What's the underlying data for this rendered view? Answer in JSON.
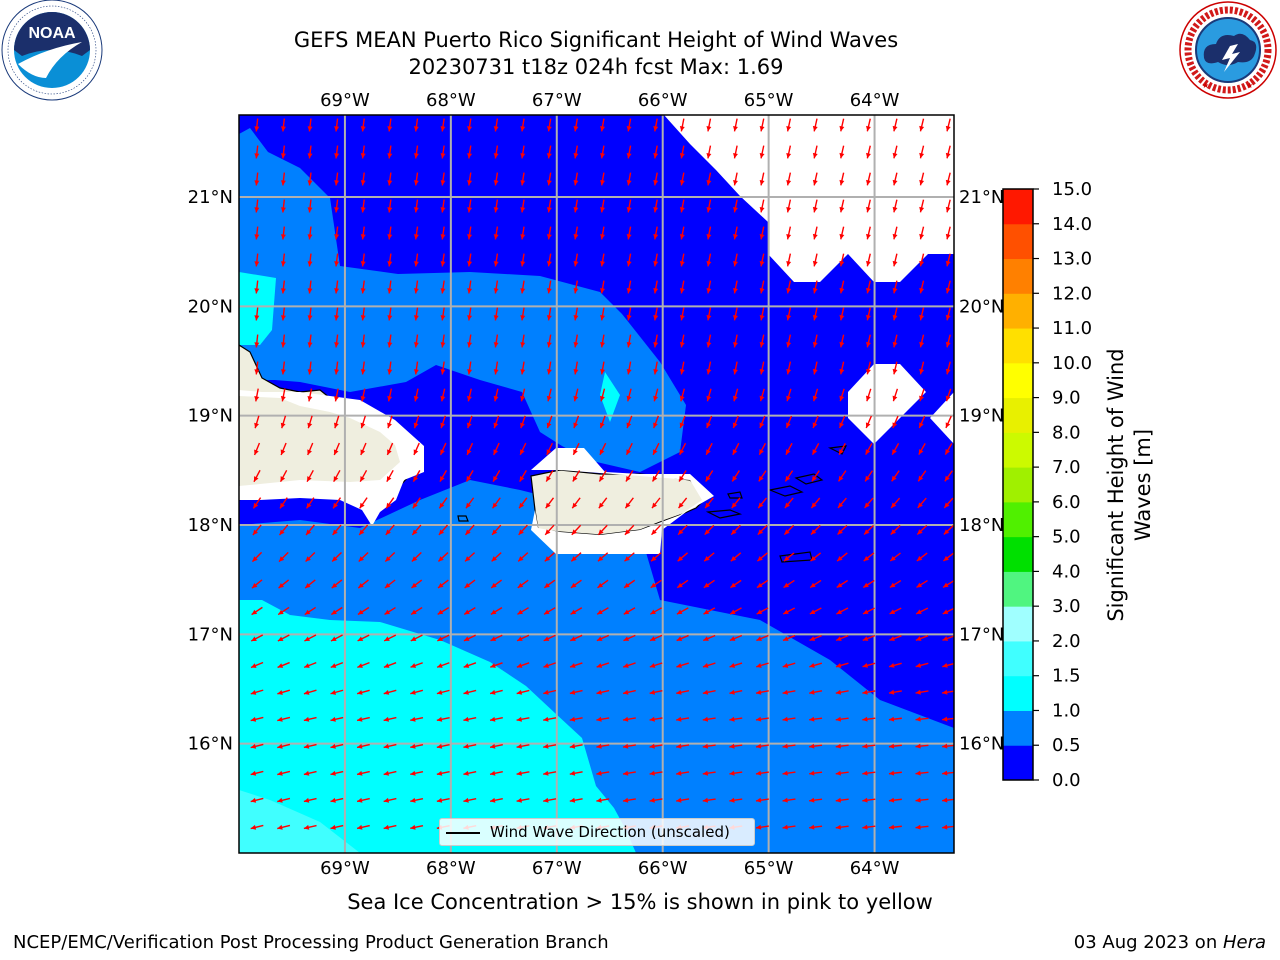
{
  "header": {
    "title_line1": "GEFS MEAN Puerto Rico Significant Height of Wind Waves",
    "title_line2": "20230731 t18z 024h fcst   Max: 1.69"
  },
  "logos": {
    "left": {
      "name": "noaa-logo",
      "text": "NOAA",
      "ring_text": "NATIONAL OCEANIC AND ATMOSPHERIC ADMINISTRATION · U.S. DEPARTMENT OF COMMERCE"
    },
    "right": {
      "name": "nws-logo",
      "ring_text": "NATIONAL WEATHER SERVICE"
    }
  },
  "map": {
    "region": "Puerto Rico",
    "lon_labels": [
      "69°W",
      "68°W",
      "67°W",
      "66°W",
      "65°W",
      "64°W"
    ],
    "lat_labels": [
      "21°N",
      "20°N",
      "19°N",
      "18°N",
      "17°N",
      "16°N"
    ],
    "lon_range": [
      -70.0,
      -63.25
    ],
    "lat_range": [
      15.0,
      21.75
    ],
    "legend_label": "Wind Wave Direction (unscaled)",
    "arrow_color": "#ff0000",
    "land_color": "#efeedf",
    "grid": true
  },
  "colorbar": {
    "label": "Significant Height of Wind Waves [m]",
    "levels": [
      "0.0",
      "0.5",
      "1.0",
      "1.5",
      "2.0",
      "3.0",
      "4.0",
      "5.0",
      "6.0",
      "7.0",
      "8.0",
      "9.0",
      "10.0",
      "11.0",
      "12.0",
      "13.0",
      "14.0",
      "15.0"
    ],
    "colors": [
      "#0000ff",
      "#0080ff",
      "#00ffff",
      "#40ffff",
      "#a0ffff",
      "#50f580",
      "#00e000",
      "#50f000",
      "#a0f000",
      "#ccfa00",
      "#e8f000",
      "#ffff00",
      "#ffe000",
      "#ffb000",
      "#ff8000",
      "#ff5000",
      "#ff1800"
    ]
  },
  "note": "Sea Ice Concentration > 15% is shown in pink to yellow",
  "footer": {
    "left": "NCEP/EMC/Verification Post Processing Product Generation Branch",
    "right_prefix": "03 Aug 2023 on ",
    "right_host": "Hera"
  }
}
